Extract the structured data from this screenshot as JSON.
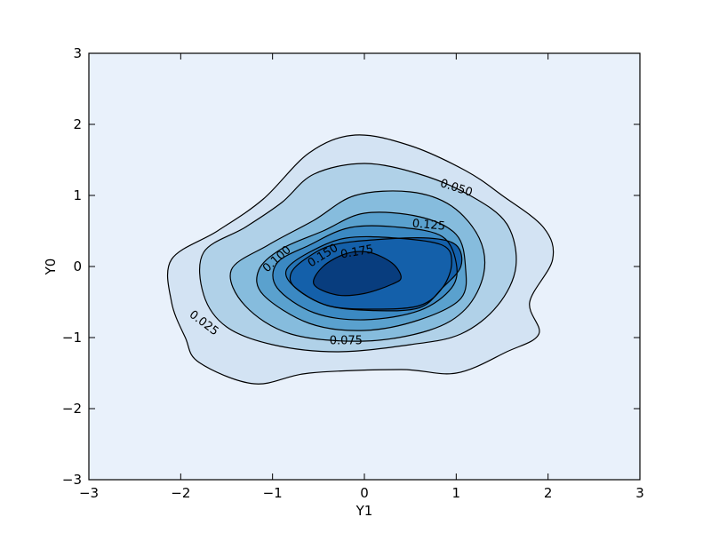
{
  "chart_data": {
    "type": "contour",
    "title": "",
    "xlabel": "Y1",
    "ylabel": "Y0",
    "xlim": [
      -3,
      3
    ],
    "ylim": [
      -3,
      3
    ],
    "x_ticks": [
      -3,
      -2,
      -1,
      0,
      1,
      2,
      3
    ],
    "y_ticks": [
      -3,
      -2,
      -1,
      0,
      1,
      2,
      3
    ],
    "x_tick_labels": [
      "−3",
      "−2",
      "−1",
      "0",
      "1",
      "2",
      "3"
    ],
    "y_tick_labels": [
      "−3",
      "−2",
      "−1",
      "0",
      "1",
      "2",
      "3"
    ],
    "grid": false,
    "colormap": "Blues",
    "background_color": "#e9f1fb",
    "levels": [
      {
        "value": 0.025,
        "label": "0.025",
        "fill": "#d3e3f3",
        "points": [
          [
            -1.8,
            -1.35
          ],
          [
            -1.2,
            -1.65
          ],
          [
            -0.6,
            -1.5
          ],
          [
            0.4,
            -1.45
          ],
          [
            1.0,
            -1.5
          ],
          [
            1.55,
            -1.2
          ],
          [
            1.9,
            -0.95
          ],
          [
            1.8,
            -0.5
          ],
          [
            2.05,
            0.1
          ],
          [
            1.95,
            0.55
          ],
          [
            1.5,
            1.0
          ],
          [
            1.1,
            1.35
          ],
          [
            0.5,
            1.7
          ],
          [
            -0.1,
            1.85
          ],
          [
            -0.6,
            1.6
          ],
          [
            -1.1,
            0.95
          ],
          [
            -1.6,
            0.5
          ],
          [
            -2.1,
            0.1
          ],
          [
            -2.1,
            -0.5
          ],
          [
            -1.95,
            -1.0
          ]
        ]
      },
      {
        "value": 0.05,
        "label": "0.050",
        "fill": "#b0d1e8",
        "points": [
          [
            -1.5,
            -0.85
          ],
          [
            -1.0,
            -1.1
          ],
          [
            -0.3,
            -1.2
          ],
          [
            0.5,
            -1.1
          ],
          [
            1.05,
            -0.95
          ],
          [
            1.45,
            -0.55
          ],
          [
            1.65,
            0.0
          ],
          [
            1.55,
            0.6
          ],
          [
            1.15,
            1.0
          ],
          [
            0.6,
            1.3
          ],
          [
            0.0,
            1.45
          ],
          [
            -0.55,
            1.3
          ],
          [
            -0.9,
            0.9
          ],
          [
            -1.3,
            0.55
          ],
          [
            -1.75,
            0.2
          ],
          [
            -1.75,
            -0.4
          ]
        ]
      },
      {
        "value": 0.075,
        "label": "0.075",
        "fill": "#86bcdd",
        "points": [
          [
            -1.3,
            -0.55
          ],
          [
            -0.8,
            -0.95
          ],
          [
            0.0,
            -1.05
          ],
          [
            0.7,
            -0.9
          ],
          [
            1.1,
            -0.6
          ],
          [
            1.3,
            -0.1
          ],
          [
            1.25,
            0.4
          ],
          [
            0.95,
            0.85
          ],
          [
            0.5,
            1.05
          ],
          [
            -0.1,
            1.0
          ],
          [
            -0.55,
            0.65
          ],
          [
            -1.05,
            0.3
          ],
          [
            -1.45,
            -0.05
          ]
        ]
      },
      {
        "value": 0.1,
        "label": "0.100",
        "fill": "#5aa1ce",
        "points": [
          [
            -1.1,
            -0.4
          ],
          [
            -0.6,
            -0.8
          ],
          [
            0.0,
            -0.9
          ],
          [
            0.6,
            -0.75
          ],
          [
            1.05,
            -0.45
          ],
          [
            1.1,
            0.0
          ],
          [
            1.0,
            0.45
          ],
          [
            0.6,
            0.7
          ],
          [
            0.0,
            0.75
          ],
          [
            -0.45,
            0.5
          ],
          [
            -0.9,
            0.25
          ],
          [
            -1.15,
            -0.05
          ]
        ]
      },
      {
        "value": 0.125,
        "label": "0.125",
        "fill": "#3b89c3",
        "points": [
          [
            -0.95,
            -0.3
          ],
          [
            -0.55,
            -0.65
          ],
          [
            0.0,
            -0.75
          ],
          [
            0.6,
            -0.62
          ],
          [
            0.95,
            -0.3
          ],
          [
            1.0,
            0.05
          ],
          [
            0.85,
            0.42
          ],
          [
            0.4,
            0.55
          ],
          [
            -0.15,
            0.55
          ],
          [
            -0.6,
            0.3
          ],
          [
            -0.95,
            0.05
          ]
        ]
      },
      {
        "value": 0.15,
        "label": "0.150",
        "fill": "#2574b6",
        "points": [
          [
            -0.75,
            -0.3
          ],
          [
            -0.4,
            -0.55
          ],
          [
            0.1,
            -0.6
          ],
          [
            0.6,
            -0.55
          ],
          [
            0.85,
            -0.3
          ],
          [
            0.95,
            0.05
          ],
          [
            0.85,
            0.3
          ],
          [
            0.35,
            0.4
          ],
          [
            -0.2,
            0.4
          ],
          [
            -0.6,
            0.2
          ],
          [
            -0.85,
            -0.05
          ]
        ]
      },
      {
        "value": 0.175,
        "label": "0.175",
        "fill": "#1460aa",
        "points": [
          [
            -0.75,
            -0.3
          ],
          [
            -0.4,
            -0.55
          ],
          [
            0.1,
            -0.62
          ],
          [
            0.6,
            -0.58
          ],
          [
            0.85,
            -0.3
          ],
          [
            1.05,
            0.0
          ],
          [
            1.0,
            0.3
          ],
          [
            0.7,
            0.4
          ],
          [
            0.15,
            0.38
          ],
          [
            -0.35,
            0.3
          ],
          [
            -0.65,
            0.1
          ],
          [
            -0.8,
            -0.1
          ]
        ]
      },
      {
        "value": 0.2,
        "label": "",
        "fill": "#083d7e",
        "points": [
          [
            -0.55,
            -0.25
          ],
          [
            -0.3,
            -0.4
          ],
          [
            0.0,
            -0.38
          ],
          [
            0.3,
            -0.25
          ],
          [
            0.4,
            -0.15
          ],
          [
            0.3,
            0.05
          ],
          [
            0.05,
            0.2
          ],
          [
            -0.2,
            0.18
          ],
          [
            -0.45,
            0.0
          ]
        ]
      }
    ],
    "contour_labels": [
      {
        "text": "0.025",
        "x": -1.75,
        "y": -0.8,
        "angle": 37
      },
      {
        "text": "0.050",
        "x": 1.0,
        "y": 1.1,
        "angle": 18
      },
      {
        "text": "0.075",
        "x": -0.2,
        "y": -1.05,
        "angle": 0
      },
      {
        "text": "0.100",
        "x": -0.95,
        "y": 0.1,
        "angle": -42
      },
      {
        "text": "0.125",
        "x": 0.7,
        "y": 0.58,
        "angle": 5
      },
      {
        "text": "0.150",
        "x": -0.45,
        "y": 0.15,
        "angle": -32
      },
      {
        "text": "0.175",
        "x": -0.08,
        "y": 0.2,
        "angle": -10
      }
    ]
  }
}
